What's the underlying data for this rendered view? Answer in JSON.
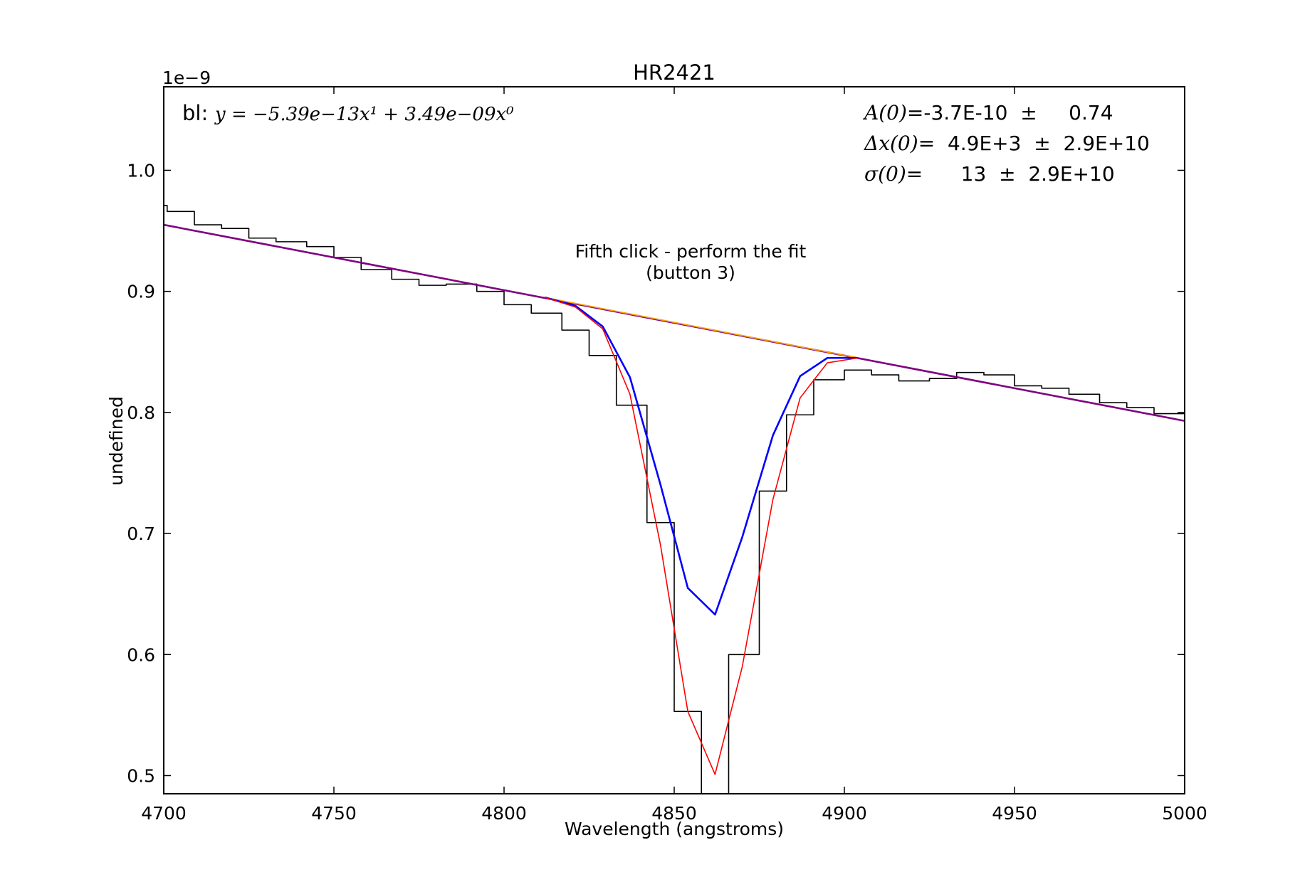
{
  "chart_data": {
    "type": "line",
    "title": "HR2421",
    "xlabel": "Wavelength (angstroms)",
    "ylabel": "undefined",
    "y_offset_label": "1e−9",
    "xlim": [
      4700,
      5000
    ],
    "ylim": [
      0.485,
      1.069
    ],
    "xticks": [
      "4700",
      "4750",
      "4800",
      "4850",
      "4900",
      "4950",
      "5000"
    ],
    "xtick_values": [
      4700,
      4750,
      4800,
      4850,
      4900,
      4950,
      5000
    ],
    "yticks": [
      "0.5",
      "0.6",
      "0.7",
      "0.8",
      "0.9",
      "1.0"
    ],
    "ytick_values": [
      0.5,
      0.6,
      0.7,
      0.8,
      0.9,
      1.0
    ],
    "grid": false,
    "colors": {
      "data": "#000000",
      "baseline": "#800080",
      "continuum": "#ffa500",
      "model": "#0000ff",
      "fit": "#ff0000"
    },
    "annotations": {
      "baseline_prefix": "bl:",
      "baseline_formula": "y = −5.39e−13x¹ + 3.49e−09x⁰",
      "param_lines": [
        {
          "label": "A(0)",
          "text": "=-3.7E-10  ±     0.74"
        },
        {
          "label": "Δx(0)",
          "text": "=  4.9E+3  ±  2.9E+10"
        },
        {
          "label": "σ(0)",
          "text": "=      13  ±  2.9E+10"
        }
      ],
      "instruction_line1": "Fifth click - perform the fit",
      "instruction_line2": "(button 3)"
    },
    "series": [
      {
        "kind": "step",
        "color_key": "data",
        "x": [
          4700,
          4701,
          4709,
          4717,
          4725,
          4733,
          4742,
          4750,
          4758,
          4767,
          4775,
          4783,
          4792,
          4800,
          4808,
          4817,
          4825,
          4833,
          4842,
          4850,
          4858,
          4866,
          4875,
          4883,
          4891,
          4900,
          4908,
          4916,
          4925,
          4933,
          4941,
          4950,
          4958,
          4966,
          4975,
          4983,
          4991,
          5000
        ],
        "y": [
          0.971,
          0.966,
          0.955,
          0.952,
          0.944,
          0.941,
          0.937,
          0.928,
          0.918,
          0.91,
          0.905,
          0.906,
          0.9,
          0.889,
          0.882,
          0.868,
          0.847,
          0.806,
          0.709,
          0.553,
          0.475,
          0.6,
          0.735,
          0.798,
          0.827,
          0.835,
          0.831,
          0.826,
          0.828,
          0.833,
          0.831,
          0.822,
          0.82,
          0.815,
          0.808,
          0.804,
          0.799,
          0.79
        ]
      },
      {
        "kind": "line",
        "color_key": "baseline",
        "x": [
          4700,
          5000
        ],
        "y": [
          0.955,
          0.793
        ]
      },
      {
        "kind": "line",
        "color_key": "continuum",
        "x": [
          4812,
          4904
        ],
        "y": [
          0.895,
          0.845
        ]
      },
      {
        "kind": "line",
        "color_key": "model",
        "x": [
          4812,
          4821,
          4829,
          4837,
          4846,
          4854,
          4862,
          4870,
          4879,
          4887,
          4895,
          4904
        ],
        "y": [
          0.895,
          0.888,
          0.871,
          0.829,
          0.74,
          0.655,
          0.633,
          0.697,
          0.781,
          0.83,
          0.845,
          0.845
        ]
      },
      {
        "kind": "line",
        "color_key": "fit",
        "x": [
          4812,
          4821,
          4829,
          4837,
          4846,
          4854,
          4862,
          4870,
          4879,
          4887,
          4895,
          4904
        ],
        "y": [
          0.895,
          0.887,
          0.869,
          0.815,
          0.69,
          0.553,
          0.501,
          0.59,
          0.728,
          0.812,
          0.841,
          0.845
        ]
      }
    ]
  }
}
